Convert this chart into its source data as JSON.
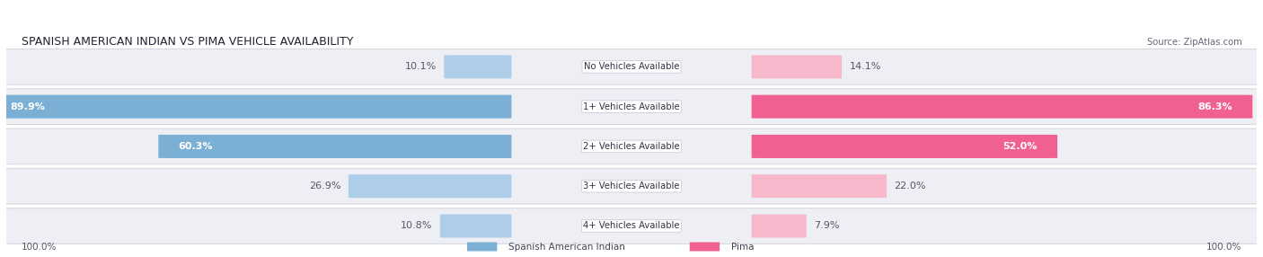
{
  "title": "SPANISH AMERICAN INDIAN VS PIMA VEHICLE AVAILABILITY",
  "source": "Source: ZipAtlas.com",
  "categories": [
    "No Vehicles Available",
    "1+ Vehicles Available",
    "2+ Vehicles Available",
    "3+ Vehicles Available",
    "4+ Vehicles Available"
  ],
  "spanish_values": [
    10.1,
    89.9,
    60.3,
    26.9,
    10.8
  ],
  "pima_values": [
    14.1,
    86.3,
    52.0,
    22.0,
    7.9
  ],
  "spanish_color_dark": "#7bafd4",
  "spanish_color_light": "#aecde8",
  "pima_color_dark": "#f06090",
  "pima_color_light": "#f8b8cc",
  "row_bg_color": "#eeeff4",
  "row_border_color": "#d8d8e0",
  "max_val": 100.0,
  "figsize": [
    14.06,
    2.86
  ],
  "dpi": 100
}
